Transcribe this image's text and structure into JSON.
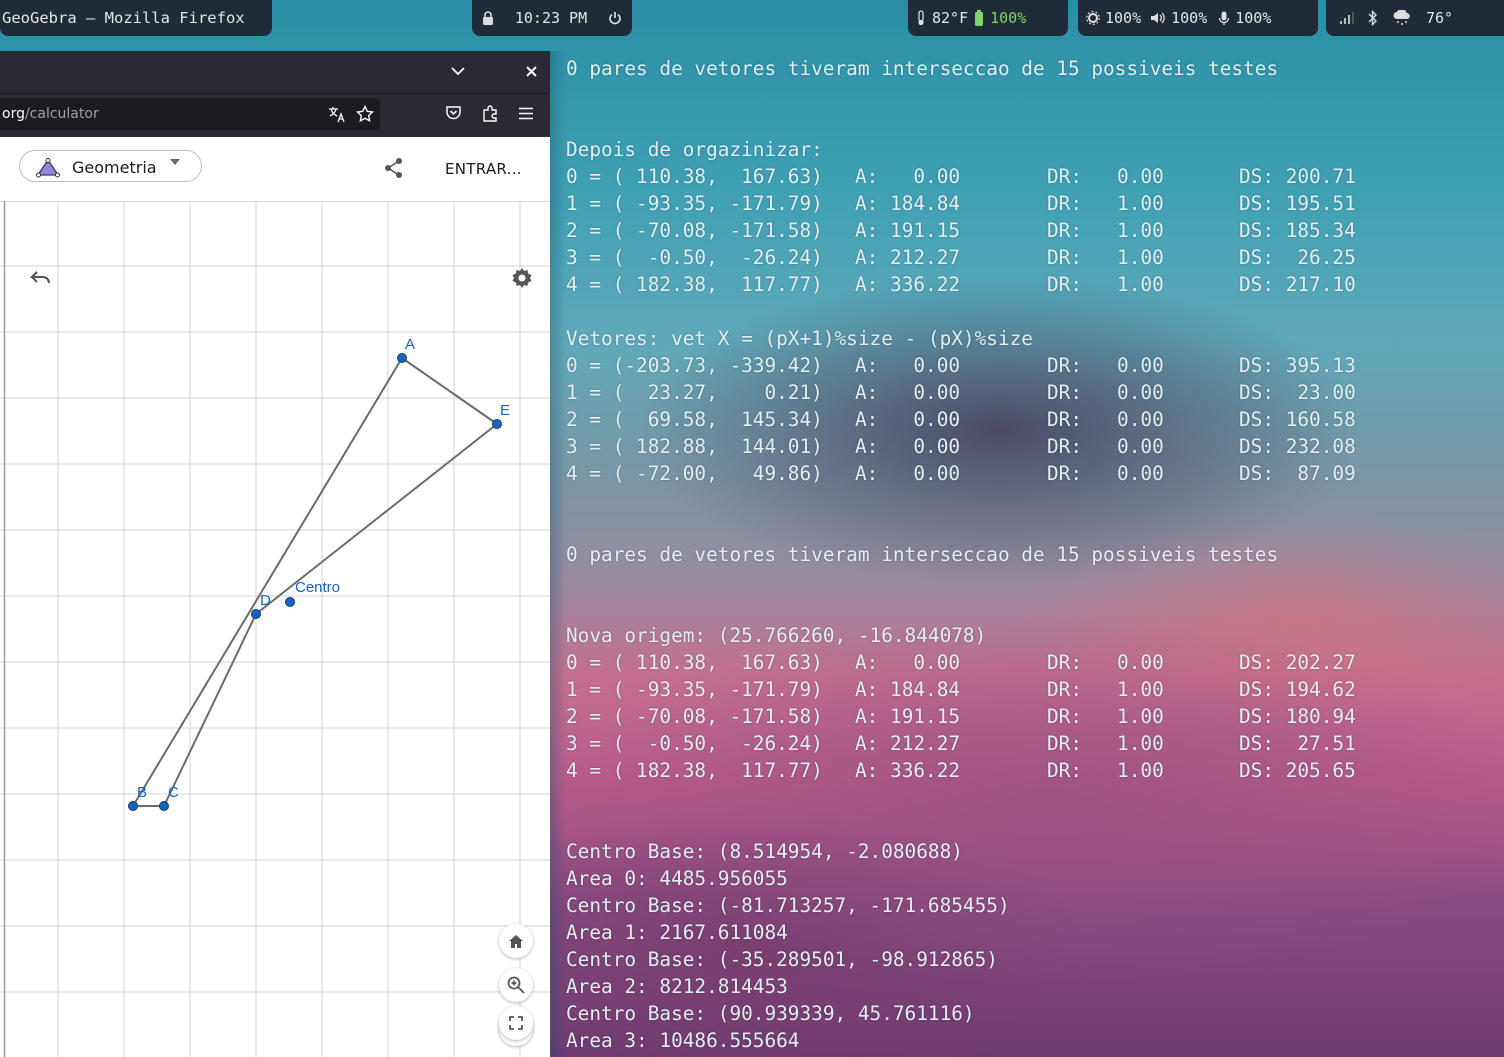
{
  "topbar": {
    "window_title": "GeoGebra — Mozilla Firefox",
    "clock": "10:23 PM",
    "temperature": "82°F",
    "battery": "100%",
    "brightness": "100%",
    "volume": "100%",
    "mic": "100%",
    "weather_temp": "76°",
    "icons": [
      "lock-icon",
      "power-icon",
      "thermometer-icon",
      "battery-icon",
      "brightness-icon",
      "speaker-icon",
      "microphone-icon",
      "wifi-signal-icon",
      "bluetooth-icon",
      "weather-snow-icon"
    ]
  },
  "firefox": {
    "url_domain": "org",
    "url_path": "/calculator",
    "title_controls": [
      "chevron-down-icon",
      "close-icon"
    ],
    "toolbar_icons": [
      "translate-icon",
      "bookmark-star-icon",
      "pocket-icon",
      "extensions-icon",
      "menu-icon"
    ]
  },
  "geogebra": {
    "app_name": "Geometria",
    "login": "ENTRAR...",
    "points": [
      {
        "label": "A"
      },
      {
        "label": "E"
      },
      {
        "label": "D"
      },
      {
        "label": "Centro"
      },
      {
        "label": "B"
      },
      {
        "label": "C"
      }
    ],
    "controls": [
      "undo-icon",
      "settings-icon",
      "home-icon",
      "zoom-in-icon",
      "zoom-out-icon",
      "fullscreen-icon"
    ]
  },
  "terminal": {
    "lines": [
      {
        "row": 0,
        "cols": [
          "0 pares de vetores tiveram interseccao de 15 possiveis testes"
        ]
      },
      {
        "row": 3,
        "cols": [
          "Depois de orgazinizar:"
        ]
      },
      {
        "row": 4,
        "cols": [
          "0 = ( 110.38,  167.63)",
          "A:   0.00",
          "DR:   0.00",
          "DS: 200.71"
        ]
      },
      {
        "row": 5,
        "cols": [
          "1 = ( -93.35, -171.79)",
          "A: 184.84",
          "DR:   1.00",
          "DS: 195.51"
        ]
      },
      {
        "row": 6,
        "cols": [
          "2 = ( -70.08, -171.58)",
          "A: 191.15",
          "DR:   1.00",
          "DS: 185.34"
        ]
      },
      {
        "row": 7,
        "cols": [
          "3 = (  -0.50,  -26.24)",
          "A: 212.27",
          "DR:   1.00",
          "DS:  26.25"
        ]
      },
      {
        "row": 8,
        "cols": [
          "4 = ( 182.38,  117.77)",
          "A: 336.22",
          "DR:   1.00",
          "DS: 217.10"
        ]
      },
      {
        "row": 10,
        "cols": [
          "Vetores: vet X = (pX+1)%size - (pX)%size"
        ]
      },
      {
        "row": 11,
        "cols": [
          "0 = (-203.73, -339.42)",
          "A:   0.00",
          "DR:   0.00",
          "DS: 395.13"
        ]
      },
      {
        "row": 12,
        "cols": [
          "1 = (  23.27,    0.21)",
          "A:   0.00",
          "DR:   0.00",
          "DS:  23.00"
        ]
      },
      {
        "row": 13,
        "cols": [
          "2 = (  69.58,  145.34)",
          "A:   0.00",
          "DR:   0.00",
          "DS: 160.58"
        ]
      },
      {
        "row": 14,
        "cols": [
          "3 = ( 182.88,  144.01)",
          "A:   0.00",
          "DR:   0.00",
          "DS: 232.08"
        ]
      },
      {
        "row": 15,
        "cols": [
          "4 = ( -72.00,   49.86)",
          "A:   0.00",
          "DR:   0.00",
          "DS:  87.09"
        ]
      },
      {
        "row": 18,
        "cols": [
          "0 pares de vetores tiveram interseccao de 15 possiveis testes"
        ]
      },
      {
        "row": 21,
        "cols": [
          "Nova origem: (25.766260, -16.844078)"
        ]
      },
      {
        "row": 22,
        "cols": [
          "0 = ( 110.38,  167.63)",
          "A:   0.00",
          "DR:   0.00",
          "DS: 202.27"
        ]
      },
      {
        "row": 23,
        "cols": [
          "1 = ( -93.35, -171.79)",
          "A: 184.84",
          "DR:   1.00",
          "DS: 194.62"
        ]
      },
      {
        "row": 24,
        "cols": [
          "2 = ( -70.08, -171.58)",
          "A: 191.15",
          "DR:   1.00",
          "DS: 180.94"
        ]
      },
      {
        "row": 25,
        "cols": [
          "3 = (  -0.50,  -26.24)",
          "A: 212.27",
          "DR:   1.00",
          "DS:  27.51"
        ]
      },
      {
        "row": 26,
        "cols": [
          "4 = ( 182.38,  117.77)",
          "A: 336.22",
          "DR:   1.00",
          "DS: 205.65"
        ]
      },
      {
        "row": 29,
        "cols": [
          "Centro Base: (8.514954, -2.080688)"
        ]
      },
      {
        "row": 30,
        "cols": [
          "Area 0: 4485.956055"
        ]
      },
      {
        "row": 31,
        "cols": [
          "Centro Base: (-81.713257, -171.685455)"
        ]
      },
      {
        "row": 32,
        "cols": [
          "Area 1: 2167.611084"
        ]
      },
      {
        "row": 33,
        "cols": [
          "Centro Base: (-35.289501, -98.912865)"
        ]
      },
      {
        "row": 34,
        "cols": [
          "Area 2: 8212.814453"
        ]
      },
      {
        "row": 35,
        "cols": [
          "Centro Base: (90.939339, 45.761116)"
        ]
      },
      {
        "row": 36,
        "cols": [
          "Area 3: 10486.555664"
        ]
      }
    ]
  }
}
